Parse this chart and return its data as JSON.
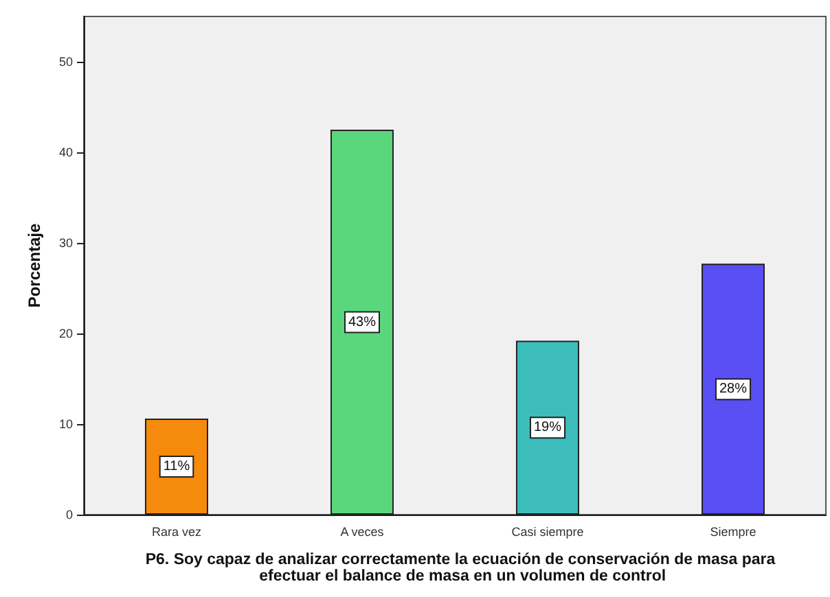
{
  "chart_data": {
    "type": "bar",
    "xlabel": "P6. Soy capaz de analizar correctamente la ecuación de conservación de masa para efectuar el balance de masa en un volumen de control",
    "ylabel": "Porcentaje",
    "categories": [
      "Rara vez",
      "A veces",
      "Casi siempre",
      "Siempre"
    ],
    "values": [
      10.6,
      42.5,
      19.2,
      27.7
    ],
    "value_labels": [
      "11%",
      "43%",
      "19%",
      "28%"
    ],
    "colors": [
      "#f58a0c",
      "#5ad77c",
      "#3cbdbb",
      "#5a4ef5"
    ],
    "ylim": [
      0,
      55
    ],
    "yticks": [
      0,
      10,
      20,
      30,
      40,
      50
    ],
    "grid": false
  }
}
